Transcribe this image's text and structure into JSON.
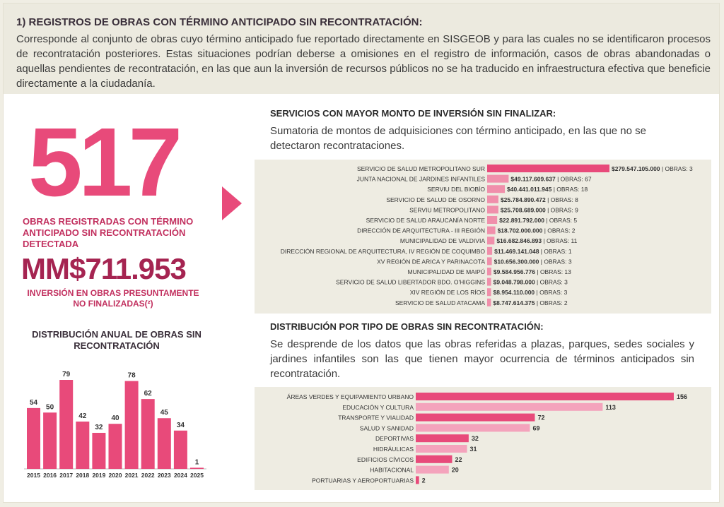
{
  "header": {
    "title": "1) REGISTROS DE OBRAS CON TÉRMINO ANTICIPADO SIN RECONTRATACIÓN:",
    "text": "Corresponde al conjunto de obras cuyo término anticipado fue reportado directamente en SISGEOB y para las cuales no se identificaron procesos de recontratación posteriores. Estas situaciones podrían deberse a omisiones en el registro de información, casos de obras abandonadas o aquellas pendientes de recontratación, en las que aun la inversión de recursos públicos no se ha traducido en infraestructura efectiva que beneficie directamente a la ciudadanía."
  },
  "summary": {
    "count": "517",
    "count_label": "OBRAS REGISTRADAS CON TÉRMINO ANTICIPADO SIN RECONTRATACIÓN DETECTADA",
    "amount": "MM$711.953",
    "amount_label": "INVERSIÓN EN OBRAS PRESUNTAMENTE NO FINALIZADAS(²)"
  },
  "annual": {
    "title": "DISTRIBUCIÓN ANUAL DE OBRAS SIN RECONTRATACIÓN"
  },
  "services": {
    "title": "SERVICIOS CON MAYOR MONTO DE INVERSIÓN SIN FINALIZAR:",
    "desc": "Sumatoria de montos de adquisiciones con término anticipado, en las que no se detectaron recontrataciones."
  },
  "types": {
    "title": "DISTRIBUCIÓN POR TIPO DE OBRAS SIN RECONTRATACIÓN:",
    "desc": "Se desprende de los datos que las obras referidas a plazas, parques, sedes sociales y jardines infantiles son las que tienen mayor ocurrencia de términos anticipados sin recontratación."
  },
  "chart_data": [
    {
      "type": "bar",
      "categories": [
        "2015",
        "2016",
        "2017",
        "2018",
        "2019",
        "2020",
        "2021",
        "2022",
        "2023",
        "2024",
        "2025"
      ],
      "values": [
        54,
        50,
        79,
        42,
        32,
        40,
        78,
        62,
        45,
        34,
        1
      ],
      "colors": {
        "bar": "#e84a7a"
      }
    },
    {
      "type": "bar",
      "orientation": "horizontal",
      "categories": [
        "SERVICIO DE SALUD METROPOLITANO SUR",
        "JUNTA NACIONAL DE JARDINES INFANTILES",
        "SERVIU DEL BIOBÍO",
        "SERVICIO DE SALUD DE OSORNO",
        "SERVIU METROPOLITANO",
        "SERVICIO DE SALUD ARAUCANÍA NORTE",
        "DIRECCIÓN DE ARQUITECTURA - III REGIÓN",
        "MUNICIPALIDAD DE VALDIVIA",
        "DIRECCIÓN REGIONAL DE ARQUITECTURA, IV REGIÓN DE COQUIMBO",
        "XV REGIÓN DE ARICA Y PARINACOTA",
        "MUNICIPALIDAD DE MAIPÚ",
        "SERVICIO DE SALUD LIBERTADOR BDO. O'HIGGINS",
        "XIV REGIÓN DE LOS RÍOS",
        "SERVICIO DE SALUD ATACAMA"
      ],
      "values": [
        279547105000,
        49117609637,
        40441011945,
        25784890472,
        25708689000,
        22891792000,
        18702000000,
        16682846893,
        11469141048,
        10656300000,
        9584956776,
        9048798000,
        8954110000,
        8747614375
      ],
      "value_labels": [
        "$279.547.105.000",
        "$49.117.609.637",
        "$40.441.011.945",
        "$25.784.890.472",
        "$25.708.689.000",
        "$22.891.792.000",
        "$18.702.000.000",
        "$16.682.846.893",
        "$11.469.141.048",
        "$10.656.300.000",
        "$9.584.956.776",
        "$9.048.798.000",
        "$8.954.110.000",
        "$8.747.614.375"
      ],
      "obras_labels": [
        "OBRAS: 3",
        "OBRAS: 67",
        "OBRAS: 18",
        "OBRAS: 8",
        "OBRAS: 9",
        "OBRAS: 5",
        "OBRAS: 2",
        "OBRAS: 11",
        "OBRAS: 1",
        "OBRAS: 3",
        "OBRAS: 13",
        "OBRAS: 3",
        "OBRAS: 3",
        "OBRAS: 2"
      ],
      "colors": {
        "first": "#e84a7a",
        "rest": "#f08fab"
      }
    },
    {
      "type": "bar",
      "orientation": "horizontal",
      "categories": [
        "ÁREAS VERDES Y EQUIPAMIENTO URBANO",
        "EDUCACIÓN Y CULTURA",
        "TRANSPORTE Y VIALIDAD",
        "SALUD Y SANIDAD",
        "DEPORTIVAS",
        "HIDRÁULICAS",
        "EDIFICIOS CÍVICOS",
        "HABITACIONAL",
        "PORTUARIAS Y AEROPORTUARIAS"
      ],
      "values": [
        156,
        113,
        72,
        69,
        32,
        31,
        22,
        20,
        2
      ],
      "colors": {
        "dark": "#e84a7a",
        "light": "#f4a3bc"
      }
    }
  ]
}
